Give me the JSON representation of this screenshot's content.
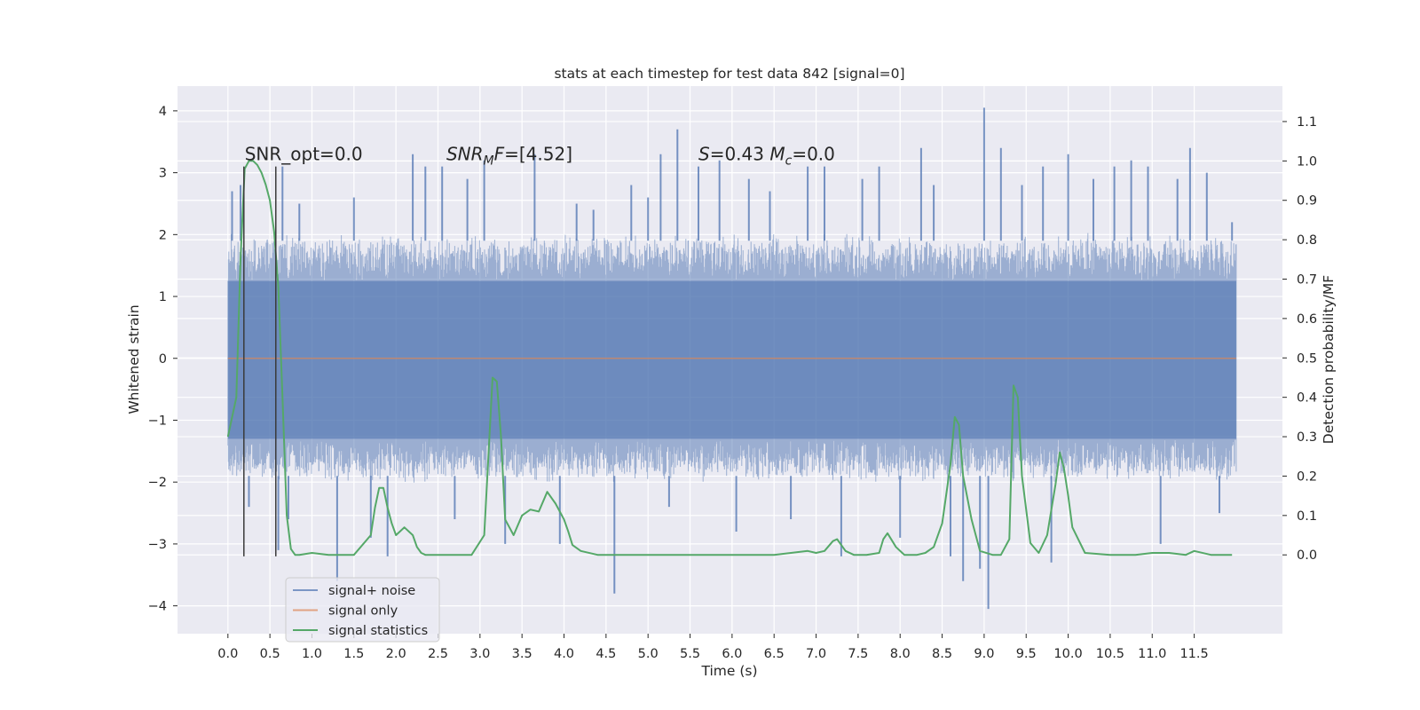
{
  "chart_data": {
    "type": "line",
    "title": "stats at each timestep for test data 842 [signal=0]",
    "xlabel": "Time (s)",
    "ylabel": "Whitened strain",
    "ylabel_right": "Detection probability/MF",
    "xlim": [
      -0.6,
      12.55
    ],
    "ylim": [
      -4.45,
      4.4
    ],
    "ylim_right": [
      -0.2,
      1.19
    ],
    "grid": true,
    "legend_position": "lower-left",
    "x_ticks": [
      0.0,
      0.5,
      1.0,
      1.5,
      2.0,
      2.5,
      3.0,
      3.5,
      4.0,
      4.5,
      5.0,
      5.5,
      6.0,
      6.5,
      7.0,
      7.5,
      8.0,
      8.5,
      9.0,
      9.5,
      10.0,
      10.5,
      11.0,
      11.5
    ],
    "x_tick_labels": [
      "0.0",
      "0.5",
      "1.0",
      "1.5",
      "2.0",
      "2.5",
      "3.0",
      "3.5",
      "4.0",
      "4.5",
      "5.0",
      "5.5",
      "6.0",
      "6.5",
      "7.0",
      "7.5",
      "8.0",
      "8.5",
      "9.0",
      "9.5",
      "10.0",
      "10.5",
      "11.0",
      "11.5"
    ],
    "y_ticks": [
      -4,
      -3,
      -2,
      -1,
      0,
      1,
      2,
      3,
      4
    ],
    "y_tick_labels": [
      "−4",
      "−3",
      "−2",
      "−1",
      "0",
      "1",
      "2",
      "3",
      "4"
    ],
    "y_ticks_right": [
      0.0,
      0.1,
      0.2,
      0.3,
      0.4,
      0.5,
      0.6,
      0.7,
      0.8,
      0.9,
      1.0,
      1.1
    ],
    "y_tick_labels_right": [
      "0.0",
      "0.1",
      "0.2",
      "0.3",
      "0.4",
      "0.5",
      "0.6",
      "0.7",
      "0.8",
      "0.9",
      "1.0",
      "1.1"
    ],
    "annotations": [
      {
        "parts": [
          {
            "t": "SNR_opt=0.0"
          }
        ],
        "x": 0.2,
        "y": 3.2
      },
      {
        "parts": [
          {
            "t": "SNR",
            "i": true
          },
          {
            "t": "M",
            "i": true,
            "sub": true
          },
          {
            "t": "F",
            "i": true
          },
          {
            "t": "=[4.52]"
          }
        ],
        "x": 2.6,
        "y": 3.2
      },
      {
        "parts": [
          {
            "t": "S",
            "i": true
          },
          {
            "t": "=0.43   "
          },
          {
            "t": "M",
            "i": true
          },
          {
            "t": "c",
            "i": true,
            "sub": true
          },
          {
            "t": "=0.0"
          }
        ],
        "x": 5.6,
        "y": 3.2
      }
    ],
    "vlines": [
      {
        "x": 0.19,
        "ymin": -3.2,
        "ymax": 3.1
      },
      {
        "x": 0.57,
        "ymin": -3.2,
        "ymax": 3.1
      }
    ],
    "series": [
      {
        "name": "signal+ noise",
        "color": "#4c72b0",
        "opacity": 0.5,
        "x_range": [
          0.0,
          12.0
        ],
        "envelope": {
          "core_low": -1.3,
          "core_high": 1.25,
          "dense_low": -1.9,
          "dense_high": 1.9
        },
        "peaks": [
          {
            "x": 0.05,
            "y": 2.7
          },
          {
            "x": 0.1,
            "y": -1.9
          },
          {
            "x": 0.15,
            "y": 2.8
          },
          {
            "x": 0.25,
            "y": -2.4
          },
          {
            "x": 0.6,
            "y": -3.1
          },
          {
            "x": 0.65,
            "y": 3.1
          },
          {
            "x": 0.72,
            "y": -2.6
          },
          {
            "x": 0.85,
            "y": 2.5
          },
          {
            "x": 1.3,
            "y": -3.6
          },
          {
            "x": 1.5,
            "y": 2.6
          },
          {
            "x": 1.7,
            "y": -2.9
          },
          {
            "x": 1.9,
            "y": -3.2
          },
          {
            "x": 2.2,
            "y": 3.3
          },
          {
            "x": 2.35,
            "y": 3.1
          },
          {
            "x": 2.55,
            "y": 3.1
          },
          {
            "x": 2.7,
            "y": -2.6
          },
          {
            "x": 2.85,
            "y": 2.9
          },
          {
            "x": 3.05,
            "y": 3.2
          },
          {
            "x": 3.3,
            "y": -3.0
          },
          {
            "x": 3.65,
            "y": 3.3
          },
          {
            "x": 3.95,
            "y": -3.0
          },
          {
            "x": 4.15,
            "y": 2.5
          },
          {
            "x": 4.35,
            "y": 2.4
          },
          {
            "x": 4.6,
            "y": -3.8
          },
          {
            "x": 4.8,
            "y": 2.8
          },
          {
            "x": 5.0,
            "y": 2.6
          },
          {
            "x": 5.15,
            "y": 3.3
          },
          {
            "x": 5.25,
            "y": -2.4
          },
          {
            "x": 5.35,
            "y": 3.7
          },
          {
            "x": 5.6,
            "y": 3.1
          },
          {
            "x": 5.85,
            "y": 3.2
          },
          {
            "x": 6.05,
            "y": -2.8
          },
          {
            "x": 6.2,
            "y": 2.9
          },
          {
            "x": 6.45,
            "y": 2.7
          },
          {
            "x": 6.7,
            "y": -2.6
          },
          {
            "x": 6.9,
            "y": 3.1
          },
          {
            "x": 7.1,
            "y": 3.1
          },
          {
            "x": 7.3,
            "y": -3.2
          },
          {
            "x": 7.55,
            "y": 2.9
          },
          {
            "x": 7.75,
            "y": 3.1
          },
          {
            "x": 8.0,
            "y": -2.9
          },
          {
            "x": 8.25,
            "y": 3.4
          },
          {
            "x": 8.4,
            "y": 2.8
          },
          {
            "x": 8.6,
            "y": -3.2
          },
          {
            "x": 8.75,
            "y": -3.6
          },
          {
            "x": 8.95,
            "y": -3.4
          },
          {
            "x": 9.0,
            "y": 4.05
          },
          {
            "x": 9.05,
            "y": -4.05
          },
          {
            "x": 9.2,
            "y": 3.4
          },
          {
            "x": 9.45,
            "y": 2.8
          },
          {
            "x": 9.7,
            "y": 3.1
          },
          {
            "x": 9.8,
            "y": -3.3
          },
          {
            "x": 10.0,
            "y": 3.3
          },
          {
            "x": 10.3,
            "y": 2.9
          },
          {
            "x": 10.55,
            "y": 3.1
          },
          {
            "x": 10.75,
            "y": 3.2
          },
          {
            "x": 10.95,
            "y": 3.1
          },
          {
            "x": 11.1,
            "y": -3.0
          },
          {
            "x": 11.3,
            "y": 2.9
          },
          {
            "x": 11.45,
            "y": 3.4
          },
          {
            "x": 11.65,
            "y": 3.0
          },
          {
            "x": 11.8,
            "y": -2.5
          },
          {
            "x": 11.95,
            "y": 2.2
          }
        ]
      },
      {
        "name": "signal only",
        "color": "#dd8452",
        "opacity": 0.7,
        "x": [
          0.0,
          12.0
        ],
        "y": [
          0.0,
          0.0
        ]
      },
      {
        "name": "signal statistics",
        "color": "#55a868",
        "axis": "right",
        "x": [
          0.0,
          0.1,
          0.15,
          0.2,
          0.25,
          0.3,
          0.35,
          0.4,
          0.45,
          0.5,
          0.55,
          0.6,
          0.65,
          0.7,
          0.75,
          0.8,
          0.85,
          1.0,
          1.2,
          1.5,
          1.7,
          1.75,
          1.8,
          1.85,
          1.9,
          1.95,
          2.0,
          2.05,
          2.1,
          2.2,
          2.25,
          2.3,
          2.35,
          2.45,
          2.6,
          2.9,
          3.05,
          3.15,
          3.2,
          3.25,
          3.3,
          3.4,
          3.5,
          3.6,
          3.7,
          3.8,
          3.9,
          4.0,
          4.05,
          4.1,
          4.2,
          4.4,
          4.7,
          5.2,
          5.6,
          6.0,
          6.5,
          6.9,
          7.0,
          7.1,
          7.2,
          7.25,
          7.3,
          7.35,
          7.45,
          7.6,
          7.75,
          7.8,
          7.85,
          7.95,
          8.05,
          8.2,
          8.3,
          8.4,
          8.5,
          8.6,
          8.65,
          8.7,
          8.75,
          8.85,
          8.95,
          9.1,
          9.2,
          9.3,
          9.35,
          9.4,
          9.45,
          9.55,
          9.65,
          9.75,
          9.85,
          9.9,
          9.95,
          10.0,
          10.05,
          10.2,
          10.5,
          10.8,
          11.0,
          11.2,
          11.4,
          11.5,
          11.7,
          11.95
        ],
        "y": [
          0.3,
          0.4,
          0.75,
          0.98,
          1.0,
          1.0,
          0.99,
          0.97,
          0.94,
          0.9,
          0.82,
          0.68,
          0.4,
          0.1,
          0.015,
          0.0,
          0.0,
          0.005,
          0.0,
          0.0,
          0.05,
          0.12,
          0.17,
          0.17,
          0.12,
          0.08,
          0.05,
          0.06,
          0.07,
          0.05,
          0.02,
          0.005,
          0.0,
          0.0,
          0.0,
          0.0,
          0.05,
          0.45,
          0.44,
          0.3,
          0.09,
          0.05,
          0.1,
          0.115,
          0.11,
          0.16,
          0.13,
          0.09,
          0.06,
          0.025,
          0.01,
          0.0,
          0.0,
          0.0,
          0.0,
          0.0,
          0.0,
          0.01,
          0.005,
          0.01,
          0.035,
          0.04,
          0.025,
          0.01,
          0.0,
          0.0,
          0.005,
          0.04,
          0.055,
          0.02,
          0.0,
          0.0,
          0.005,
          0.02,
          0.08,
          0.23,
          0.35,
          0.33,
          0.2,
          0.09,
          0.01,
          0.0,
          0.0,
          0.04,
          0.43,
          0.4,
          0.2,
          0.03,
          0.005,
          0.05,
          0.18,
          0.26,
          0.22,
          0.15,
          0.07,
          0.005,
          0.0,
          0.0,
          0.005,
          0.005,
          0.0,
          0.01,
          0.0,
          0.0
        ]
      }
    ]
  }
}
